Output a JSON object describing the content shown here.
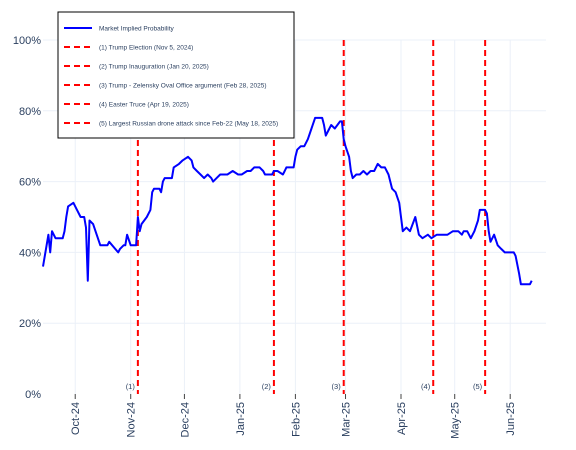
{
  "chart_data": {
    "type": "line",
    "title": "",
    "xlabel": "",
    "ylabel": "",
    "ylim": [
      0,
      100
    ],
    "y_ticks": [
      "0%",
      "20%",
      "40%",
      "60%",
      "80%",
      "100%"
    ],
    "x_ticks": [
      {
        "date": "2024-10-01",
        "label": "Oct-24"
      },
      {
        "date": "2024-11-01",
        "label": "Nov-24"
      },
      {
        "date": "2024-12-01",
        "label": "Dec-24"
      },
      {
        "date": "2025-01-01",
        "label": "Jan-25"
      },
      {
        "date": "2025-02-01",
        "label": "Feb-25"
      },
      {
        "date": "2025-03-01",
        "label": "Mar-25"
      },
      {
        "date": "2025-04-01",
        "label": "Apr-25"
      },
      {
        "date": "2025-05-01",
        "label": "May-25"
      },
      {
        "date": "2025-06-01",
        "label": "Jun-25"
      }
    ],
    "xlim": [
      "2024-09-13",
      "2025-06-21"
    ],
    "grid": true,
    "legend_position": "top-left",
    "series": [
      {
        "name": "Market Implied Probability",
        "color": "#0000ff",
        "points": [
          [
            "2024-09-13",
            36
          ],
          [
            "2024-09-15",
            42
          ],
          [
            "2024-09-16",
            45
          ],
          [
            "2024-09-17",
            40
          ],
          [
            "2024-09-18",
            46
          ],
          [
            "2024-09-20",
            44
          ],
          [
            "2024-09-24",
            44
          ],
          [
            "2024-09-25",
            46
          ],
          [
            "2024-09-26",
            50
          ],
          [
            "2024-09-27",
            53
          ],
          [
            "2024-09-30",
            54
          ],
          [
            "2024-10-02",
            52
          ],
          [
            "2024-10-04",
            50
          ],
          [
            "2024-10-06",
            50
          ],
          [
            "2024-10-07",
            47
          ],
          [
            "2024-10-08",
            32
          ],
          [
            "2024-10-09",
            49
          ],
          [
            "2024-10-11",
            48
          ],
          [
            "2024-10-13",
            45
          ],
          [
            "2024-10-15",
            42
          ],
          [
            "2024-10-19",
            42
          ],
          [
            "2024-10-20",
            43
          ],
          [
            "2024-10-25",
            40
          ],
          [
            "2024-10-26",
            41
          ],
          [
            "2024-10-28",
            42
          ],
          [
            "2024-10-29",
            42
          ],
          [
            "2024-10-30",
            45
          ],
          [
            "2024-11-01",
            42
          ],
          [
            "2024-11-04",
            42
          ],
          [
            "2024-11-05",
            50
          ],
          [
            "2024-11-06",
            46
          ],
          [
            "2024-11-07",
            48
          ],
          [
            "2024-11-10",
            50
          ],
          [
            "2024-11-12",
            52
          ],
          [
            "2024-11-13",
            57
          ],
          [
            "2024-11-14",
            58
          ],
          [
            "2024-11-17",
            58
          ],
          [
            "2024-11-18",
            57
          ],
          [
            "2024-11-19",
            60
          ],
          [
            "2024-11-20",
            61
          ],
          [
            "2024-11-22",
            61
          ],
          [
            "2024-11-24",
            61
          ],
          [
            "2024-11-25",
            64
          ],
          [
            "2024-11-28",
            65
          ],
          [
            "2024-11-30",
            66
          ],
          [
            "2024-12-03",
            67
          ],
          [
            "2024-12-05",
            66
          ],
          [
            "2024-12-06",
            64
          ],
          [
            "2024-12-08",
            63
          ],
          [
            "2024-12-10",
            62
          ],
          [
            "2024-12-12",
            61
          ],
          [
            "2024-12-14",
            62
          ],
          [
            "2024-12-16",
            61
          ],
          [
            "2024-12-17",
            60
          ],
          [
            "2024-12-19",
            61
          ],
          [
            "2024-12-21",
            62
          ],
          [
            "2024-12-23",
            62
          ],
          [
            "2024-12-25",
            62
          ],
          [
            "2024-12-28",
            63
          ],
          [
            "2024-12-31",
            62
          ],
          [
            "2025-01-02",
            62
          ],
          [
            "2025-01-05",
            63
          ],
          [
            "2025-01-07",
            63
          ],
          [
            "2025-01-09",
            64
          ],
          [
            "2025-01-12",
            64
          ],
          [
            "2025-01-14",
            63
          ],
          [
            "2025-01-15",
            62
          ],
          [
            "2025-01-17",
            62
          ],
          [
            "2025-01-19",
            62
          ],
          [
            "2025-01-20",
            63
          ],
          [
            "2025-01-22",
            63
          ],
          [
            "2025-01-25",
            62
          ],
          [
            "2025-01-26",
            63
          ],
          [
            "2025-01-27",
            64
          ],
          [
            "2025-01-31",
            64
          ],
          [
            "2025-02-01",
            67
          ],
          [
            "2025-02-02",
            69
          ],
          [
            "2025-02-04",
            70
          ],
          [
            "2025-02-06",
            70
          ],
          [
            "2025-02-08",
            72
          ],
          [
            "2025-02-10",
            75
          ],
          [
            "2025-02-12",
            78
          ],
          [
            "2025-02-16",
            78
          ],
          [
            "2025-02-17",
            76
          ],
          [
            "2025-02-18",
            73
          ],
          [
            "2025-02-19",
            74
          ],
          [
            "2025-02-21",
            76
          ],
          [
            "2025-02-23",
            75
          ],
          [
            "2025-02-26",
            77
          ],
          [
            "2025-02-27",
            77
          ],
          [
            "2025-02-28",
            72
          ],
          [
            "2025-03-01",
            70
          ],
          [
            "2025-03-03",
            67
          ],
          [
            "2025-03-04",
            63
          ],
          [
            "2025-03-05",
            61
          ],
          [
            "2025-03-07",
            62
          ],
          [
            "2025-03-09",
            62
          ],
          [
            "2025-03-11",
            63
          ],
          [
            "2025-03-13",
            62
          ],
          [
            "2025-03-15",
            63
          ],
          [
            "2025-03-17",
            63
          ],
          [
            "2025-03-19",
            65
          ],
          [
            "2025-03-21",
            64
          ],
          [
            "2025-03-23",
            64
          ],
          [
            "2025-03-25",
            62
          ],
          [
            "2025-03-27",
            58
          ],
          [
            "2025-03-29",
            57
          ],
          [
            "2025-03-31",
            54
          ],
          [
            "2025-04-02",
            46
          ],
          [
            "2025-04-04",
            47
          ],
          [
            "2025-04-06",
            46
          ],
          [
            "2025-04-09",
            50
          ],
          [
            "2025-04-11",
            45
          ],
          [
            "2025-04-13",
            44
          ],
          [
            "2025-04-16",
            45
          ],
          [
            "2025-04-18",
            44
          ],
          [
            "2025-04-21",
            45
          ],
          [
            "2025-04-24",
            45
          ],
          [
            "2025-04-27",
            45
          ],
          [
            "2025-04-30",
            46
          ],
          [
            "2025-05-03",
            46
          ],
          [
            "2025-05-05",
            45
          ],
          [
            "2025-05-06",
            46
          ],
          [
            "2025-05-08",
            46
          ],
          [
            "2025-05-10",
            44
          ],
          [
            "2025-05-12",
            46
          ],
          [
            "2025-05-14",
            49
          ],
          [
            "2025-05-15",
            52
          ],
          [
            "2025-05-18",
            52
          ],
          [
            "2025-05-19",
            51
          ],
          [
            "2025-05-20",
            46
          ],
          [
            "2025-05-21",
            43
          ],
          [
            "2025-05-23",
            45
          ],
          [
            "2025-05-25",
            42
          ],
          [
            "2025-05-27",
            41
          ],
          [
            "2025-05-29",
            40
          ],
          [
            "2025-06-01",
            40
          ],
          [
            "2025-06-03",
            40
          ],
          [
            "2025-06-04",
            39
          ],
          [
            "2025-06-06",
            34
          ],
          [
            "2025-06-07",
            31
          ],
          [
            "2025-06-10",
            31
          ],
          [
            "2025-06-12",
            31
          ],
          [
            "2025-06-13",
            32
          ]
        ]
      }
    ],
    "events": [
      {
        "date": "2024-11-05",
        "label": "(1)",
        "legend": "(1) Trump Election (Nov 5, 2024)"
      },
      {
        "date": "2025-01-20",
        "label": "(2)",
        "legend": "(2) Trump Inauguration (Jan 20, 2025)"
      },
      {
        "date": "2025-02-28",
        "label": "(3)",
        "legend": "(3) Trump - Zelensky Oval Office argument (Feb 28, 2025)"
      },
      {
        "date": "2025-04-19",
        "label": "(4)",
        "legend": "(4) Easter Truce (Apr 19, 2025)"
      },
      {
        "date": "2025-05-18",
        "label": "(5)",
        "legend": "(5) Largest Russian drone attack since Feb-22 (May 18, 2025)"
      }
    ],
    "colors": {
      "line": "#0000ff",
      "event_line": "#ff0000",
      "grid": "#ebf0f8",
      "text": "#2a3f5f",
      "legend_border": "#000000"
    }
  }
}
